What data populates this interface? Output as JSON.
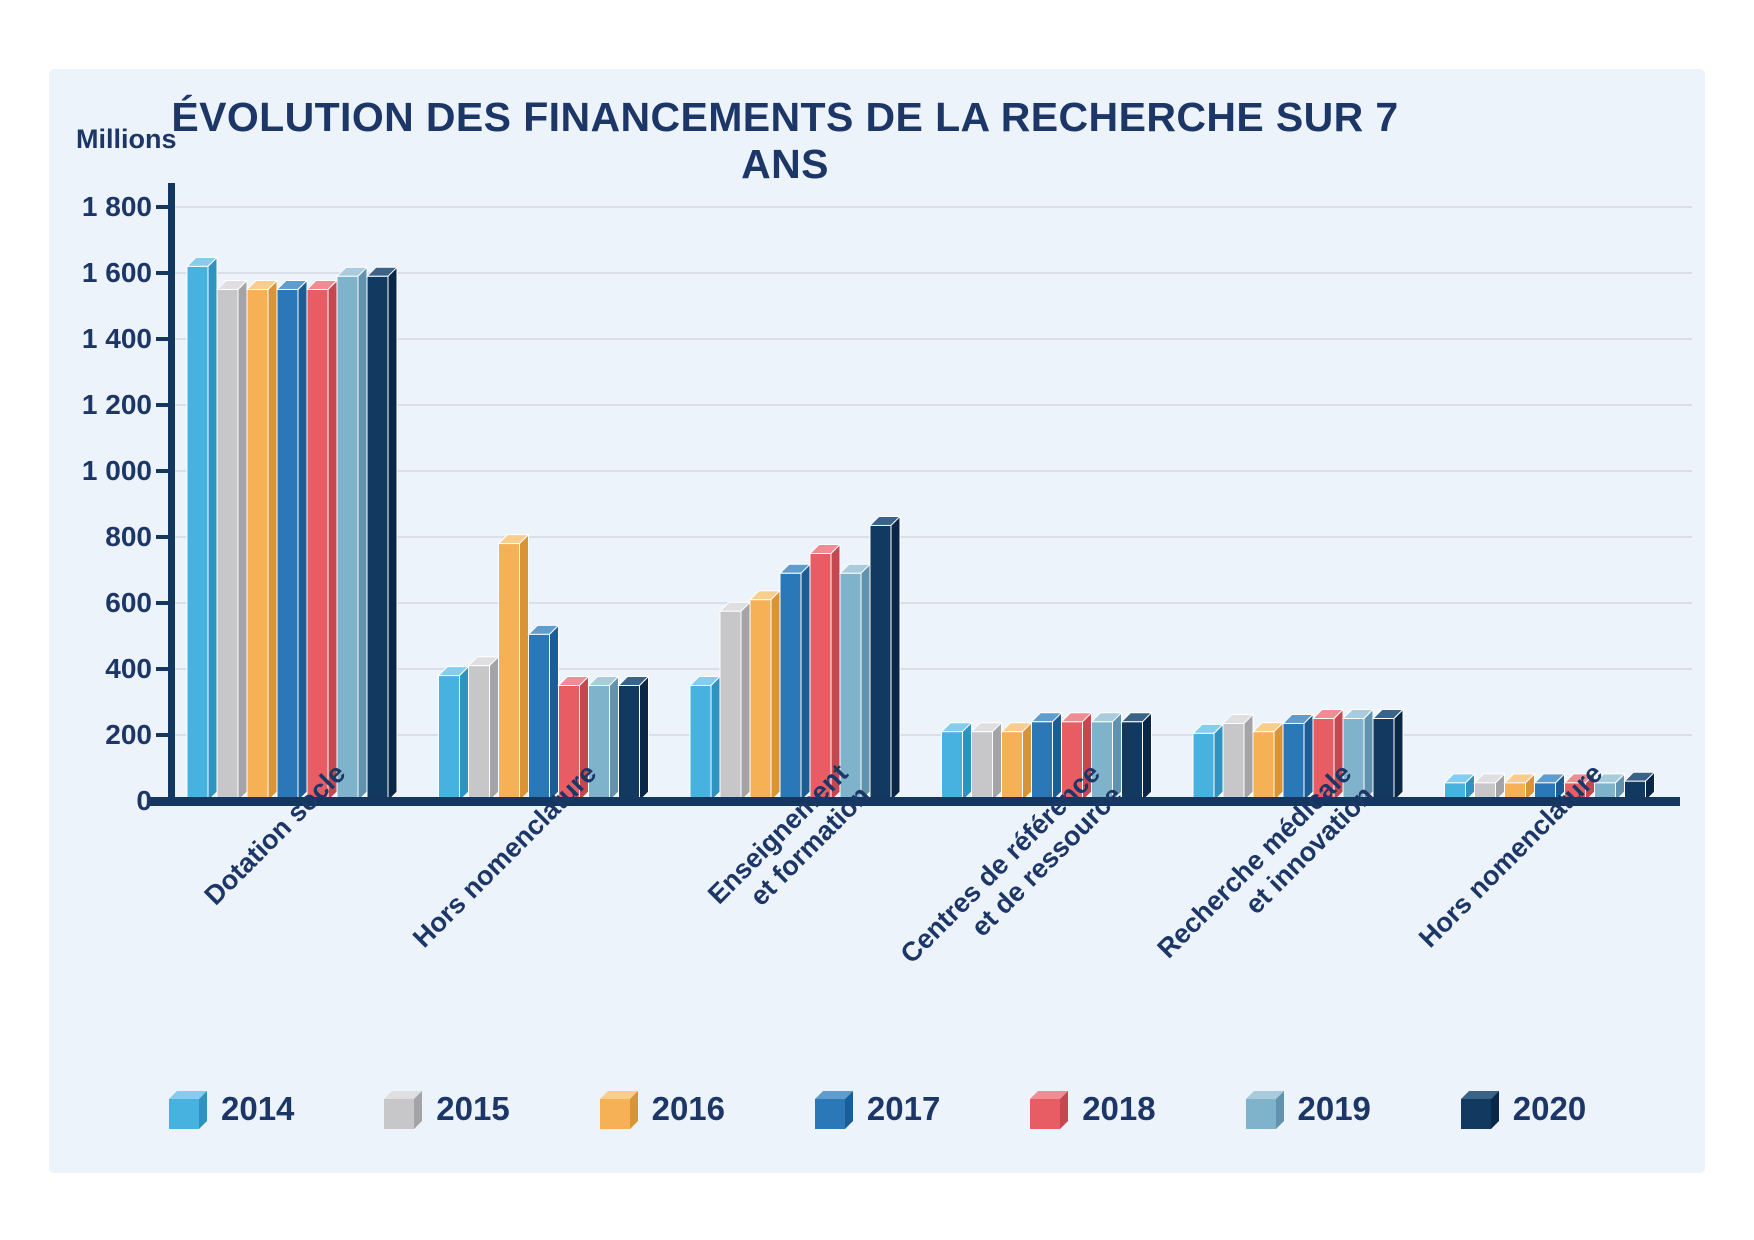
{
  "page": {
    "background": "#ffffff",
    "panel_background": "#edf3fa"
  },
  "chart_data": {
    "type": "bar",
    "title": "ÉVOLUTION DES FINANCEMENTS DE LA RECHERCHE SUR 7 ANS",
    "ylabel": "Millions",
    "xlabel": "",
    "ylim": [
      0,
      1800
    ],
    "ytick_step": 200,
    "grid": true,
    "legend_position": "bottom",
    "axis_color": "#14375f",
    "grid_color": "#d9dee8",
    "text_color": "#1c3767",
    "bar_outline_color": "#ffffff",
    "yticks": [
      {
        "value": 1800,
        "label": "1 800"
      },
      {
        "value": 1600,
        "label": "1 600"
      },
      {
        "value": 1400,
        "label": "1 400"
      },
      {
        "value": 1200,
        "label": "1 200"
      },
      {
        "value": 1000,
        "label": "1 000"
      },
      {
        "value": 800,
        "label": "800"
      },
      {
        "value": 600,
        "label": "600"
      },
      {
        "value": 400,
        "label": "400"
      },
      {
        "value": 200,
        "label": "200"
      },
      {
        "value": 0,
        "label": "0"
      }
    ],
    "categories": [
      "Dotation socle",
      "Hors nomenclature",
      "Enseignement\net formation",
      "Centres de référence\net de ressource",
      "Recherche médicale\net innovation",
      "Hors nomenclature"
    ],
    "series": [
      {
        "name": "2014",
        "color": "#47b2e0",
        "color_top": "#84cdee",
        "color_side": "#2f93c2",
        "values": [
          1620,
          380,
          350,
          210,
          205,
          55
        ]
      },
      {
        "name": "2015",
        "color": "#c7c7ca",
        "color_top": "#dfdfe1",
        "color_side": "#a3a3a8",
        "values": [
          1550,
          410,
          575,
          210,
          235,
          55
        ]
      },
      {
        "name": "2016",
        "color": "#f6b156",
        "color_top": "#f9ce8d",
        "color_side": "#d89435",
        "values": [
          1550,
          780,
          610,
          210,
          210,
          55
        ]
      },
      {
        "name": "2017",
        "color": "#2a78b8",
        "color_top": "#5e9dcd",
        "color_side": "#1d5d95",
        "values": [
          1550,
          505,
          690,
          240,
          235,
          55
        ]
      },
      {
        "name": "2018",
        "color": "#e85d64",
        "color_top": "#f08d92",
        "color_side": "#c54850",
        "values": [
          1550,
          350,
          750,
          240,
          250,
          55
        ]
      },
      {
        "name": "2019",
        "color": "#7fb2cb",
        "color_top": "#a8ccdd",
        "color_side": "#6293ae",
        "values": [
          1590,
          350,
          690,
          240,
          250,
          55
        ]
      },
      {
        "name": "2020",
        "color": "#123a61",
        "color_top": "#3b6287",
        "color_side": "#0b2747",
        "values": [
          1590,
          350,
          835,
          240,
          250,
          60
        ]
      }
    ]
  }
}
